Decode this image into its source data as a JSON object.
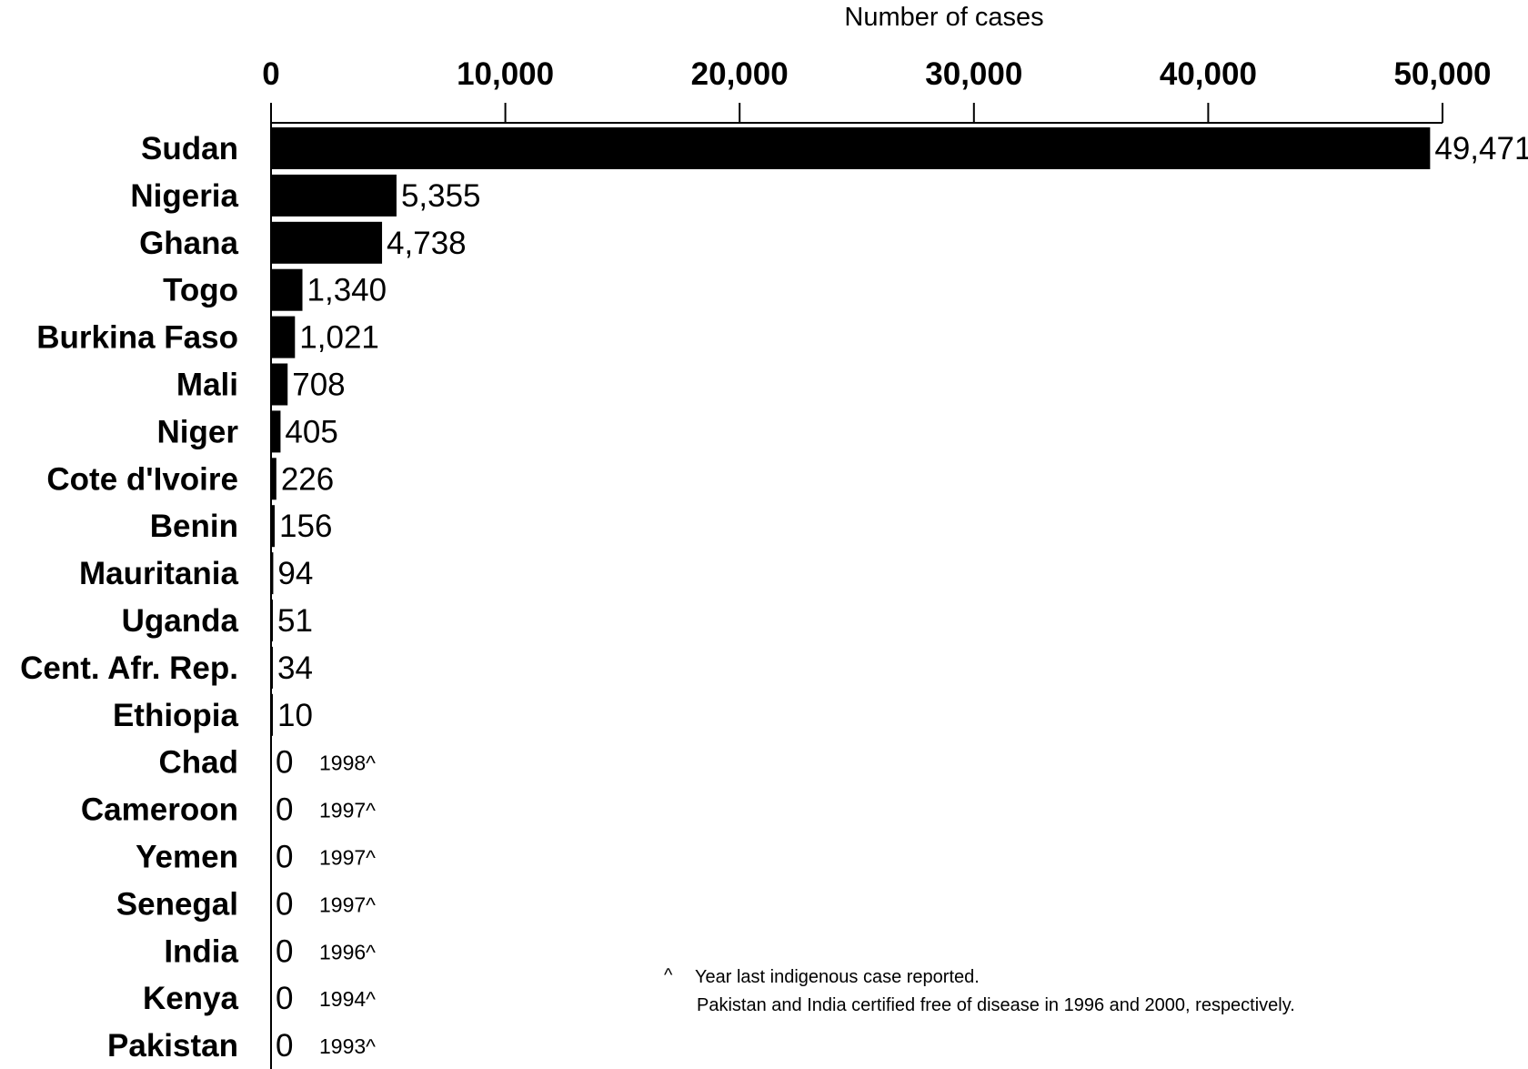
{
  "chart_data": {
    "type": "bar",
    "orientation": "horizontal",
    "xlabel": "Number of cases",
    "xlim": [
      0,
      50000
    ],
    "ticks": [
      {
        "value": 0,
        "label": "0"
      },
      {
        "value": 10000,
        "label": "10,000"
      },
      {
        "value": 20000,
        "label": "20,000"
      },
      {
        "value": 30000,
        "label": "30,000"
      },
      {
        "value": 40000,
        "label": "40,000"
      },
      {
        "value": 50000,
        "label": "50,000"
      }
    ],
    "grid": false,
    "bar_color": "#000000",
    "rows": [
      {
        "category": "Sudan",
        "value": 49471,
        "label": "49,471"
      },
      {
        "category": "Nigeria",
        "value": 5355,
        "label": "5,355"
      },
      {
        "category": "Ghana",
        "value": 4738,
        "label": "4,738"
      },
      {
        "category": "Togo",
        "value": 1340,
        "label": "1,340"
      },
      {
        "category": "Burkina Faso",
        "value": 1021,
        "label": "1,021"
      },
      {
        "category": "Mali",
        "value": 708,
        "label": "708"
      },
      {
        "category": "Niger",
        "value": 405,
        "label": "405"
      },
      {
        "category": "Cote d'Ivoire",
        "value": 226,
        "label": "226"
      },
      {
        "category": "Benin",
        "value": 156,
        "label": "156"
      },
      {
        "category": "Mauritania",
        "value": 94,
        "label": "94"
      },
      {
        "category": "Uganda",
        "value": 51,
        "label": "51"
      },
      {
        "category": "Cent. Afr. Rep.",
        "value": 34,
        "label": "34"
      },
      {
        "category": "Ethiopia",
        "value": 10,
        "label": "10"
      },
      {
        "category": "Chad",
        "value": 0,
        "label": "0",
        "year": "1998^"
      },
      {
        "category": "Cameroon",
        "value": 0,
        "label": "0",
        "year": "1997^"
      },
      {
        "category": "Yemen",
        "value": 0,
        "label": "0",
        "year": "1997^"
      },
      {
        "category": "Senegal",
        "value": 0,
        "label": "0",
        "year": "1997^"
      },
      {
        "category": "India",
        "value": 0,
        "label": "0",
        "year": "1996^"
      },
      {
        "category": "Kenya",
        "value": 0,
        "label": "0",
        "year": "1994^"
      },
      {
        "category": "Pakistan",
        "value": 0,
        "label": "0",
        "year": "1993^"
      }
    ],
    "footnote": {
      "marker": "^",
      "line1": "Year last indigenous case reported.",
      "line2": "Pakistan and India certified free of disease in 1996 and 2000, respectively."
    }
  }
}
